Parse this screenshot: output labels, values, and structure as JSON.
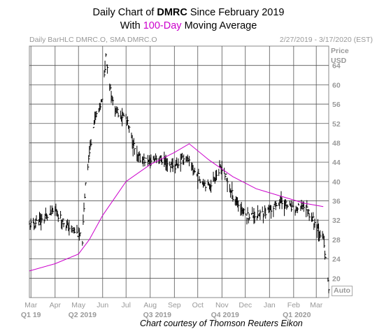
{
  "title": {
    "line1_prefix": "Daily Chart of ",
    "symbol": "DMRC",
    "line1_suffix": " Since February 2019",
    "line2_prefix": "With ",
    "ma_label": "100-Day",
    "line2_suffix": " Moving Average"
  },
  "header": {
    "left": "Daily BarHLC DMRC.O, SMA DMRC.O",
    "right": "2/27/2019 - 3/17/2020 (EST)"
  },
  "axis_unit": {
    "price": "Price",
    "currency": "USD"
  },
  "auto_label": "Auto",
  "courtesy": "Chart courtesy of Thomson Reuters Eikon",
  "colors": {
    "price_bars": "#000000",
    "sma": "#cc00cc",
    "grid": "#555555",
    "axis_text": "#999999"
  },
  "chart_data": {
    "type": "line",
    "price_type": "daily HLC bars",
    "ylim": [
      16,
      68
    ],
    "y_ticks": [
      20,
      24,
      28,
      32,
      36,
      40,
      44,
      48,
      52,
      56,
      60,
      64
    ],
    "y_tick_labels": [
      "20",
      "24",
      "28",
      "32",
      "36",
      "40",
      "44",
      "48",
      "52",
      "56",
      "60",
      "64"
    ],
    "x_tick_labels": [
      "Mar",
      "Apr",
      "May",
      "Jun",
      "Jul",
      "Aug",
      "Sep",
      "Oct",
      "Nov",
      "Dec",
      "Jan",
      "Feb",
      "Mar"
    ],
    "quarter_labels": [
      "Q1 19",
      "Q2 2019",
      "Q3 2019",
      "Q4 2019",
      "Q1 2020"
    ],
    "x_range": [
      "2019-02-27",
      "2020-03-17"
    ],
    "grid": true,
    "series": [
      {
        "kind": "close",
        "x": [
          "2019-02-27",
          "2019-03-15",
          "2019-04-01",
          "2019-04-15",
          "2019-05-01",
          "2019-05-06",
          "2019-05-10",
          "2019-05-20",
          "2019-06-01",
          "2019-06-05",
          "2019-06-15",
          "2019-07-01",
          "2019-07-15",
          "2019-08-01",
          "2019-08-10",
          "2019-08-20",
          "2019-09-01",
          "2019-09-15",
          "2019-10-01",
          "2019-10-15",
          "2019-11-01",
          "2019-11-15",
          "2019-12-01",
          "2019-12-15",
          "2020-01-01",
          "2020-01-15",
          "2020-02-01",
          "2020-02-15",
          "2020-03-01",
          "2020-03-10",
          "2020-03-17"
        ],
        "values": [
          31,
          32,
          34,
          31,
          29,
          28,
          40,
          52,
          57,
          66,
          55,
          53,
          45,
          44,
          45,
          44,
          43,
          45,
          41,
          39,
          43,
          37,
          33,
          33,
          34,
          36,
          34,
          35,
          31,
          28,
          18
        ]
      },
      {
        "name": "100-Day",
        "kind": "sma",
        "x": [
          "2019-02-27",
          "2019-04-01",
          "2019-05-01",
          "2019-05-15",
          "2019-06-01",
          "2019-07-01",
          "2019-08-01",
          "2019-09-01",
          "2019-09-20",
          "2019-10-15",
          "2019-11-15",
          "2019-12-15",
          "2020-01-15",
          "2020-02-15",
          "2020-03-10"
        ],
        "values": [
          21.5,
          23,
          25,
          28,
          33,
          40,
          43.5,
          46,
          47.8,
          44.5,
          41,
          38.5,
          37,
          35.5,
          34.8
        ]
      }
    ]
  }
}
